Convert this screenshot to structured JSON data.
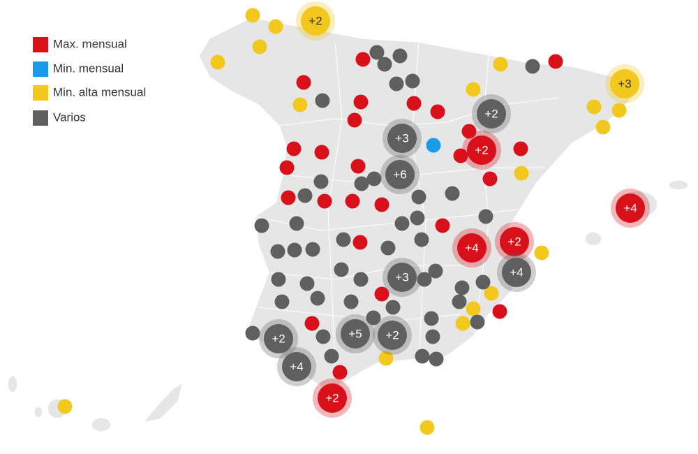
{
  "legend": {
    "items": [
      {
        "label": "Max. mensual",
        "color": "#d7101a"
      },
      {
        "label": "Min. mensual",
        "color": "#1a9be6"
      },
      {
        "label": "Min. alta mensual",
        "color": "#f2c81e"
      },
      {
        "label": "Varios",
        "color": "#5f5f5f"
      }
    ]
  },
  "clusters": [
    {
      "label": "+2"
    },
    {
      "label": "+3"
    },
    {
      "label": "+2"
    },
    {
      "label": "+3"
    },
    {
      "label": "+2"
    },
    {
      "label": "+6"
    },
    {
      "label": "+4"
    },
    {
      "label": "+4"
    },
    {
      "label": "+2"
    },
    {
      "label": "+4"
    },
    {
      "label": "+3"
    },
    {
      "label": "+2"
    },
    {
      "label": "+5"
    },
    {
      "label": "+2"
    },
    {
      "label": "+4"
    },
    {
      "label": "+2"
    }
  ]
}
